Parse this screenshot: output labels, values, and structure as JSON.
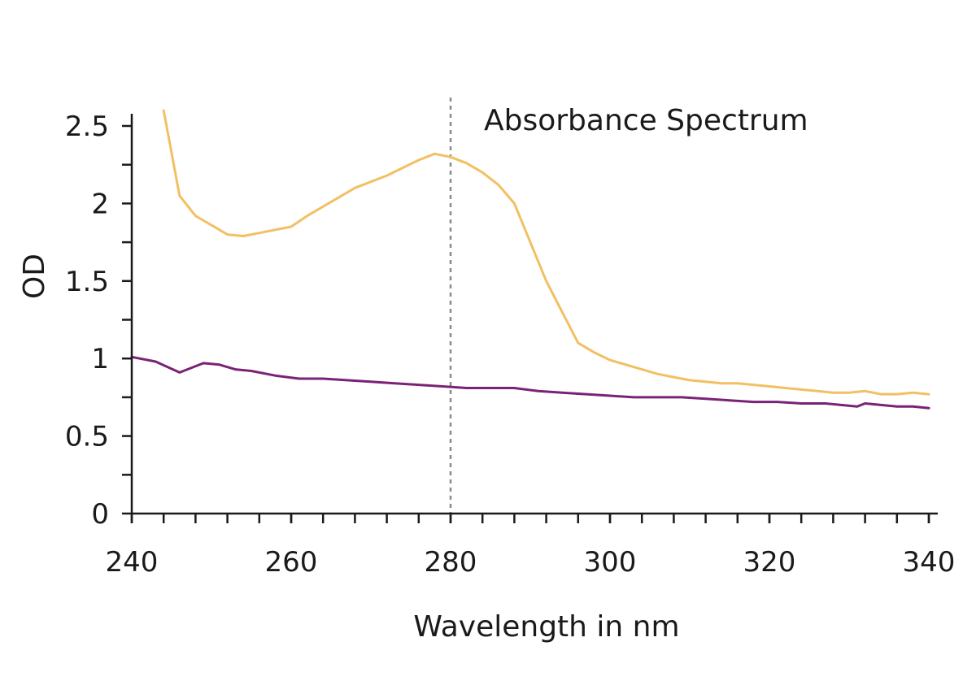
{
  "chart_data": {
    "type": "line",
    "xlabel": "Wavelength in nm",
    "ylabel": "OD",
    "xlim": [
      240,
      340
    ],
    "ylim": [
      0,
      2.5
    ],
    "x_ticks": [
      240,
      260,
      280,
      300,
      320,
      340
    ],
    "x_tick_labels": [
      "240",
      "260",
      "280",
      "300",
      "320",
      "340"
    ],
    "x_minor_step": 4,
    "y_ticks": [
      0,
      0.5,
      1,
      1.5,
      2,
      2.5
    ],
    "y_tick_labels": [
      "0",
      "0.5",
      "1",
      "1.5",
      "2",
      "2.5"
    ],
    "y_minor_step": 0.25,
    "grid": false,
    "reference_line": {
      "x": 280,
      "label": "Absorbance Spectrum"
    },
    "series": [
      {
        "color": "#f2c063",
        "x": [
          244,
          246,
          248,
          250,
          252,
          254,
          256,
          258,
          260,
          262,
          264,
          266,
          268,
          270,
          272,
          274,
          276,
          278,
          280,
          282,
          284,
          286,
          288,
          290,
          292,
          294,
          296,
          298,
          300,
          302,
          304,
          306,
          308,
          310,
          312,
          314,
          316,
          318,
          320,
          322,
          324,
          326,
          328,
          330,
          332,
          334,
          336,
          338,
          340
        ],
        "y": [
          2.6,
          2.05,
          1.92,
          1.86,
          1.8,
          1.79,
          1.81,
          1.83,
          1.85,
          1.92,
          1.98,
          2.04,
          2.1,
          2.14,
          2.18,
          2.23,
          2.28,
          2.32,
          2.3,
          2.26,
          2.2,
          2.12,
          2.0,
          1.75,
          1.5,
          1.3,
          1.1,
          1.04,
          0.99,
          0.96,
          0.93,
          0.9,
          0.88,
          0.86,
          0.85,
          0.84,
          0.84,
          0.83,
          0.82,
          0.81,
          0.8,
          0.79,
          0.78,
          0.78,
          0.79,
          0.77,
          0.77,
          0.78,
          0.77
        ]
      },
      {
        "color": "#7a2277",
        "x": [
          240,
          243,
          246,
          249,
          251,
          253,
          255,
          258,
          261,
          264,
          267,
          270,
          273,
          276,
          279,
          282,
          285,
          288,
          291,
          294,
          297,
          300,
          303,
          306,
          309,
          312,
          315,
          318,
          321,
          324,
          327,
          329,
          331,
          332,
          334,
          336,
          338,
          340
        ],
        "y": [
          1.01,
          0.98,
          0.91,
          0.97,
          0.96,
          0.93,
          0.92,
          0.89,
          0.87,
          0.87,
          0.86,
          0.85,
          0.84,
          0.83,
          0.82,
          0.81,
          0.81,
          0.81,
          0.79,
          0.78,
          0.77,
          0.76,
          0.75,
          0.75,
          0.75,
          0.74,
          0.73,
          0.72,
          0.72,
          0.71,
          0.71,
          0.7,
          0.69,
          0.71,
          0.7,
          0.69,
          0.69,
          0.68
        ]
      }
    ]
  }
}
